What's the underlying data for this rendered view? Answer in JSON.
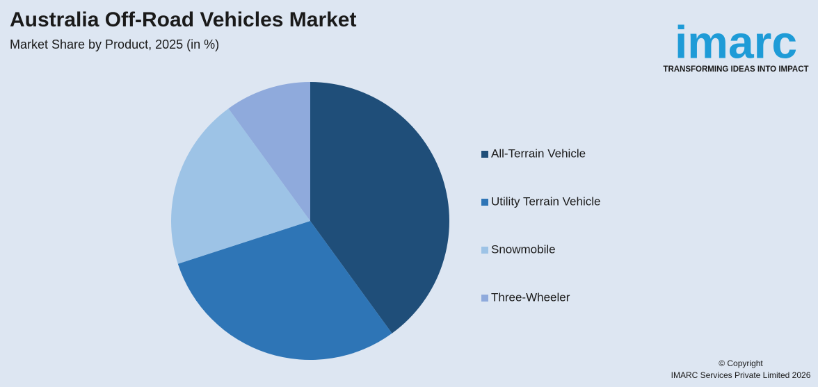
{
  "chart_data": {
    "type": "pie",
    "title": "Australia Off-Road Vehicles Market",
    "subtitle": "Market Share by Product, 2025 (in %)",
    "categories": [
      "All-Terrain Vehicle",
      "Utility Terrain Vehicle",
      "Snowmobile",
      "Three-Wheeler"
    ],
    "values": [
      40,
      30,
      20,
      10
    ],
    "colors": [
      "#1f4e79",
      "#2e75b6",
      "#9dc3e6",
      "#8faadc"
    ],
    "legend": "right"
  },
  "logo": {
    "name": "imarc",
    "tagline": "TRANSFORMING IDEAS INTO IMPACT"
  },
  "footer": {
    "copyright": "© Copyright",
    "company": "IMARC Services Private Limited 2026"
  }
}
